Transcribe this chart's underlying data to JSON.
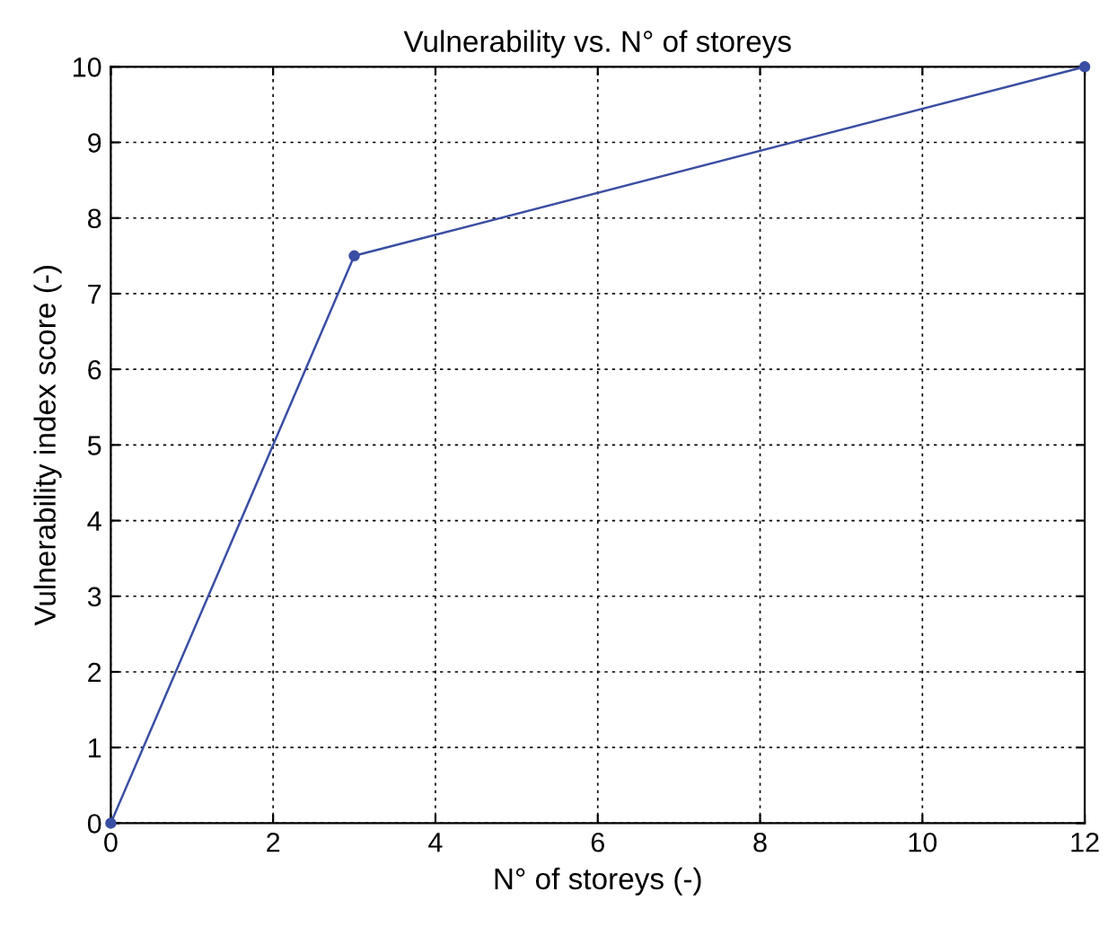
{
  "chart_data": {
    "type": "line",
    "title": "Vulnerability vs. N° of storeys",
    "xlabel": "N° of storeys (-)",
    "ylabel": "Vulnerability index score (-)",
    "x": [
      0,
      3,
      12
    ],
    "series": [
      {
        "color": "#3a4ea3",
        "values": [
          0,
          7.5,
          10
        ]
      }
    ],
    "xlim": [
      0,
      12
    ],
    "xticks": [
      0,
      2,
      4,
      6,
      8,
      10,
      12
    ],
    "ylim": [
      0,
      10
    ],
    "yticks": [
      0,
      1,
      2,
      3,
      4,
      5,
      6,
      7,
      8,
      9,
      10
    ],
    "grid": true,
    "marker": "circle",
    "line_style": "solid",
    "legend": false
  }
}
